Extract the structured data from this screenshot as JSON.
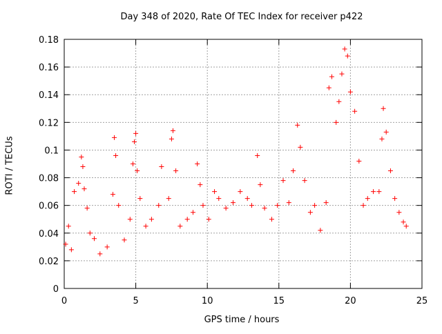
{
  "chart_data": {
    "type": "scatter",
    "title": "Day 348 of 2020, Rate Of TEC Index for receiver p422",
    "xlabel": "GPS time / hours",
    "ylabel": "ROTI / TECUs",
    "xlim": [
      0,
      25
    ],
    "ylim": [
      0,
      0.18
    ],
    "xticks": [
      "0",
      "5",
      "10",
      "15",
      "20",
      "25"
    ],
    "yticks": [
      "0",
      "0.02",
      "0.04",
      "0.06",
      "0.08",
      "0.1",
      "0.12",
      "0.14",
      "0.16",
      "0.18"
    ],
    "grid": true,
    "marker": "+",
    "color": "#ff0000",
    "series": [
      {
        "x": [
          0.1,
          0.3,
          0.5,
          0.7,
          1.0,
          1.2,
          1.3,
          1.4,
          1.6,
          1.8,
          2.1,
          2.5,
          3.0,
          3.4,
          3.5,
          3.6,
          3.8,
          4.2,
          4.6,
          4.8,
          4.9,
          5.0,
          5.1,
          5.3,
          5.7,
          6.1,
          6.6,
          6.8,
          7.3,
          7.5,
          7.6,
          7.8,
          8.1,
          8.6,
          9.0,
          9.3,
          9.5,
          9.7,
          10.1,
          10.5,
          10.8,
          11.3,
          11.8,
          12.3,
          12.8,
          13.1,
          13.5,
          13.7,
          14.0,
          14.5,
          14.9,
          15.3,
          15.7,
          16.0,
          16.3,
          16.5,
          16.8,
          17.2,
          17.5,
          17.9,
          18.3,
          18.5,
          18.7,
          19.0,
          19.2,
          19.4,
          19.6,
          19.8,
          20.0,
          20.3,
          20.6,
          20.9,
          21.2,
          21.6,
          22.0,
          22.2,
          22.3,
          22.5,
          22.8,
          23.1,
          23.4,
          23.7,
          23.9
        ],
        "y": [
          0.032,
          0.045,
          0.028,
          0.07,
          0.076,
          0.095,
          0.088,
          0.072,
          0.058,
          0.04,
          0.036,
          0.025,
          0.03,
          0.068,
          0.109,
          0.096,
          0.06,
          0.035,
          0.05,
          0.09,
          0.106,
          0.112,
          0.085,
          0.065,
          0.045,
          0.05,
          0.06,
          0.088,
          0.065,
          0.108,
          0.114,
          0.085,
          0.045,
          0.05,
          0.055,
          0.09,
          0.075,
          0.06,
          0.05,
          0.07,
          0.065,
          0.058,
          0.062,
          0.07,
          0.065,
          0.06,
          0.096,
          0.075,
          0.058,
          0.05,
          0.06,
          0.078,
          0.062,
          0.085,
          0.118,
          0.102,
          0.078,
          0.055,
          0.06,
          0.042,
          0.062,
          0.145,
          0.153,
          0.12,
          0.135,
          0.155,
          0.173,
          0.168,
          0.142,
          0.128,
          0.092,
          0.06,
          0.065,
          0.07,
          0.07,
          0.108,
          0.13,
          0.113,
          0.085,
          0.065,
          0.055,
          0.048,
          0.045
        ]
      }
    ]
  }
}
